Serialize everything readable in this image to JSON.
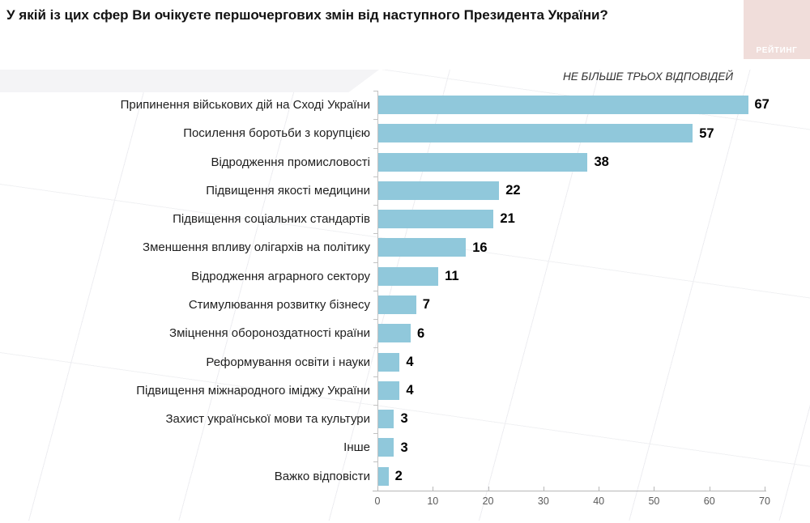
{
  "header": {
    "title": "У якій із цих сфер Ви очікуєте першочергових змін від наступного Президента України?",
    "logo_text": "РЕЙТИНГ",
    "logo_bg": "#f0ddda",
    "logo_text_color": "#ffffff"
  },
  "note": "НЕ БІЛЬШЕ ТРЬОХ ВІДПОВІДЕЙ",
  "chart_data": {
    "type": "bar",
    "orientation": "horizontal",
    "title": "У якій із цих сфер Ви очікуєте першочергових змін від наступного Президента України?",
    "subtitle": "НЕ БІЛЬШЕ ТРЬОХ ВІДПОВІДЕЙ",
    "categories": [
      "Припинення військових дій на Сході України",
      "Посилення боротьби з корупцією",
      "Відродження промисловості",
      "Підвищення якості медицини",
      "Підвищення соціальних стандартів",
      "Зменшення впливу олігархів на політику",
      "Відродження аграрного сектору",
      "Стимулювання розвитку бізнесу",
      "Зміцнення обороноздатності країни",
      "Реформування освіти і науки",
      "Підвищення міжнародного іміджу України",
      "Захист української мови та культури",
      "Інше",
      "Важко відповісти"
    ],
    "values": [
      67,
      57,
      38,
      22,
      21,
      16,
      11,
      7,
      6,
      4,
      4,
      3,
      3,
      2
    ],
    "xlabel": "",
    "ylabel": "",
    "xlim": [
      0,
      70
    ],
    "x_ticks": [
      0,
      10,
      20,
      30,
      40,
      50,
      60,
      70
    ],
    "bar_color": "#90c8db",
    "grid": false,
    "legend": false,
    "value_labels": true
  }
}
